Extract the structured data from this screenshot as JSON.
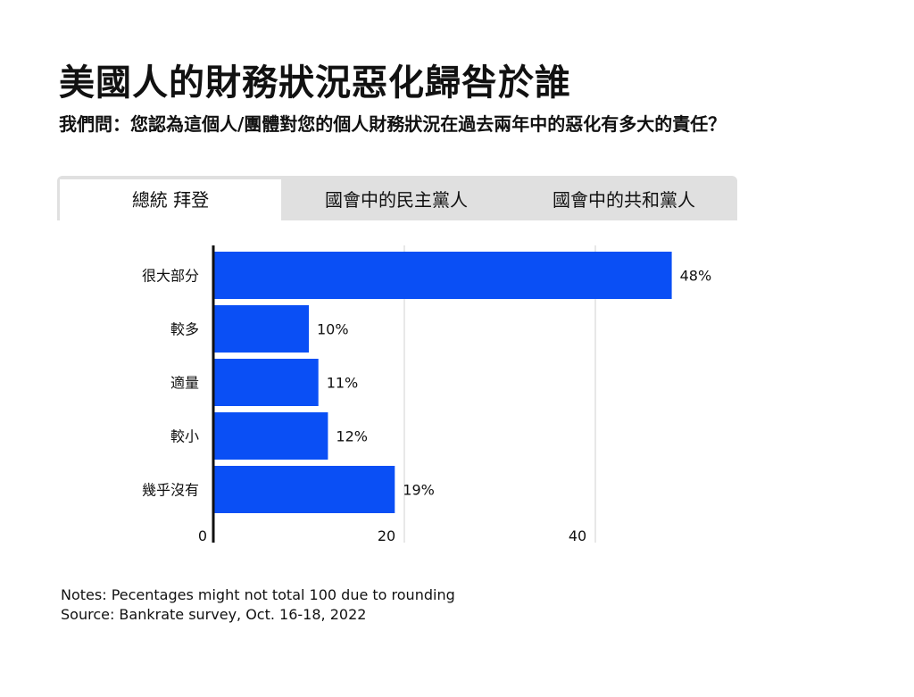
{
  "title": "美國人的財務狀況惡化歸咎於誰",
  "subtitle": "我們問：您認為這個人/團體對您的個人財務狀況在過去兩年中的惡化有多大的責任？",
  "tabs": [
    {
      "label": "總統 拜登",
      "active": true
    },
    {
      "label": "國會中的民主黨人",
      "active": false
    },
    {
      "label": "國會中的共和黨人",
      "active": false
    }
  ],
  "chart_data": {
    "type": "bar",
    "orientation": "horizontal",
    "categories": [
      "很大部分",
      "較多",
      "適量",
      "較小",
      "幾乎沒有"
    ],
    "values": [
      48,
      10,
      11,
      12,
      19
    ],
    "value_labels": [
      "48%",
      "10%",
      "11%",
      "12%",
      "19%"
    ],
    "x_ticks": [
      0,
      20,
      40
    ],
    "xlim": [
      0,
      48
    ],
    "grid": true,
    "bar_color": "#0a4ff5"
  },
  "notes": {
    "line1": "Notes: Pecentages might not total 100 due to rounding",
    "line2": "Source: Bankrate survey, Oct. 16-18, 2022"
  }
}
